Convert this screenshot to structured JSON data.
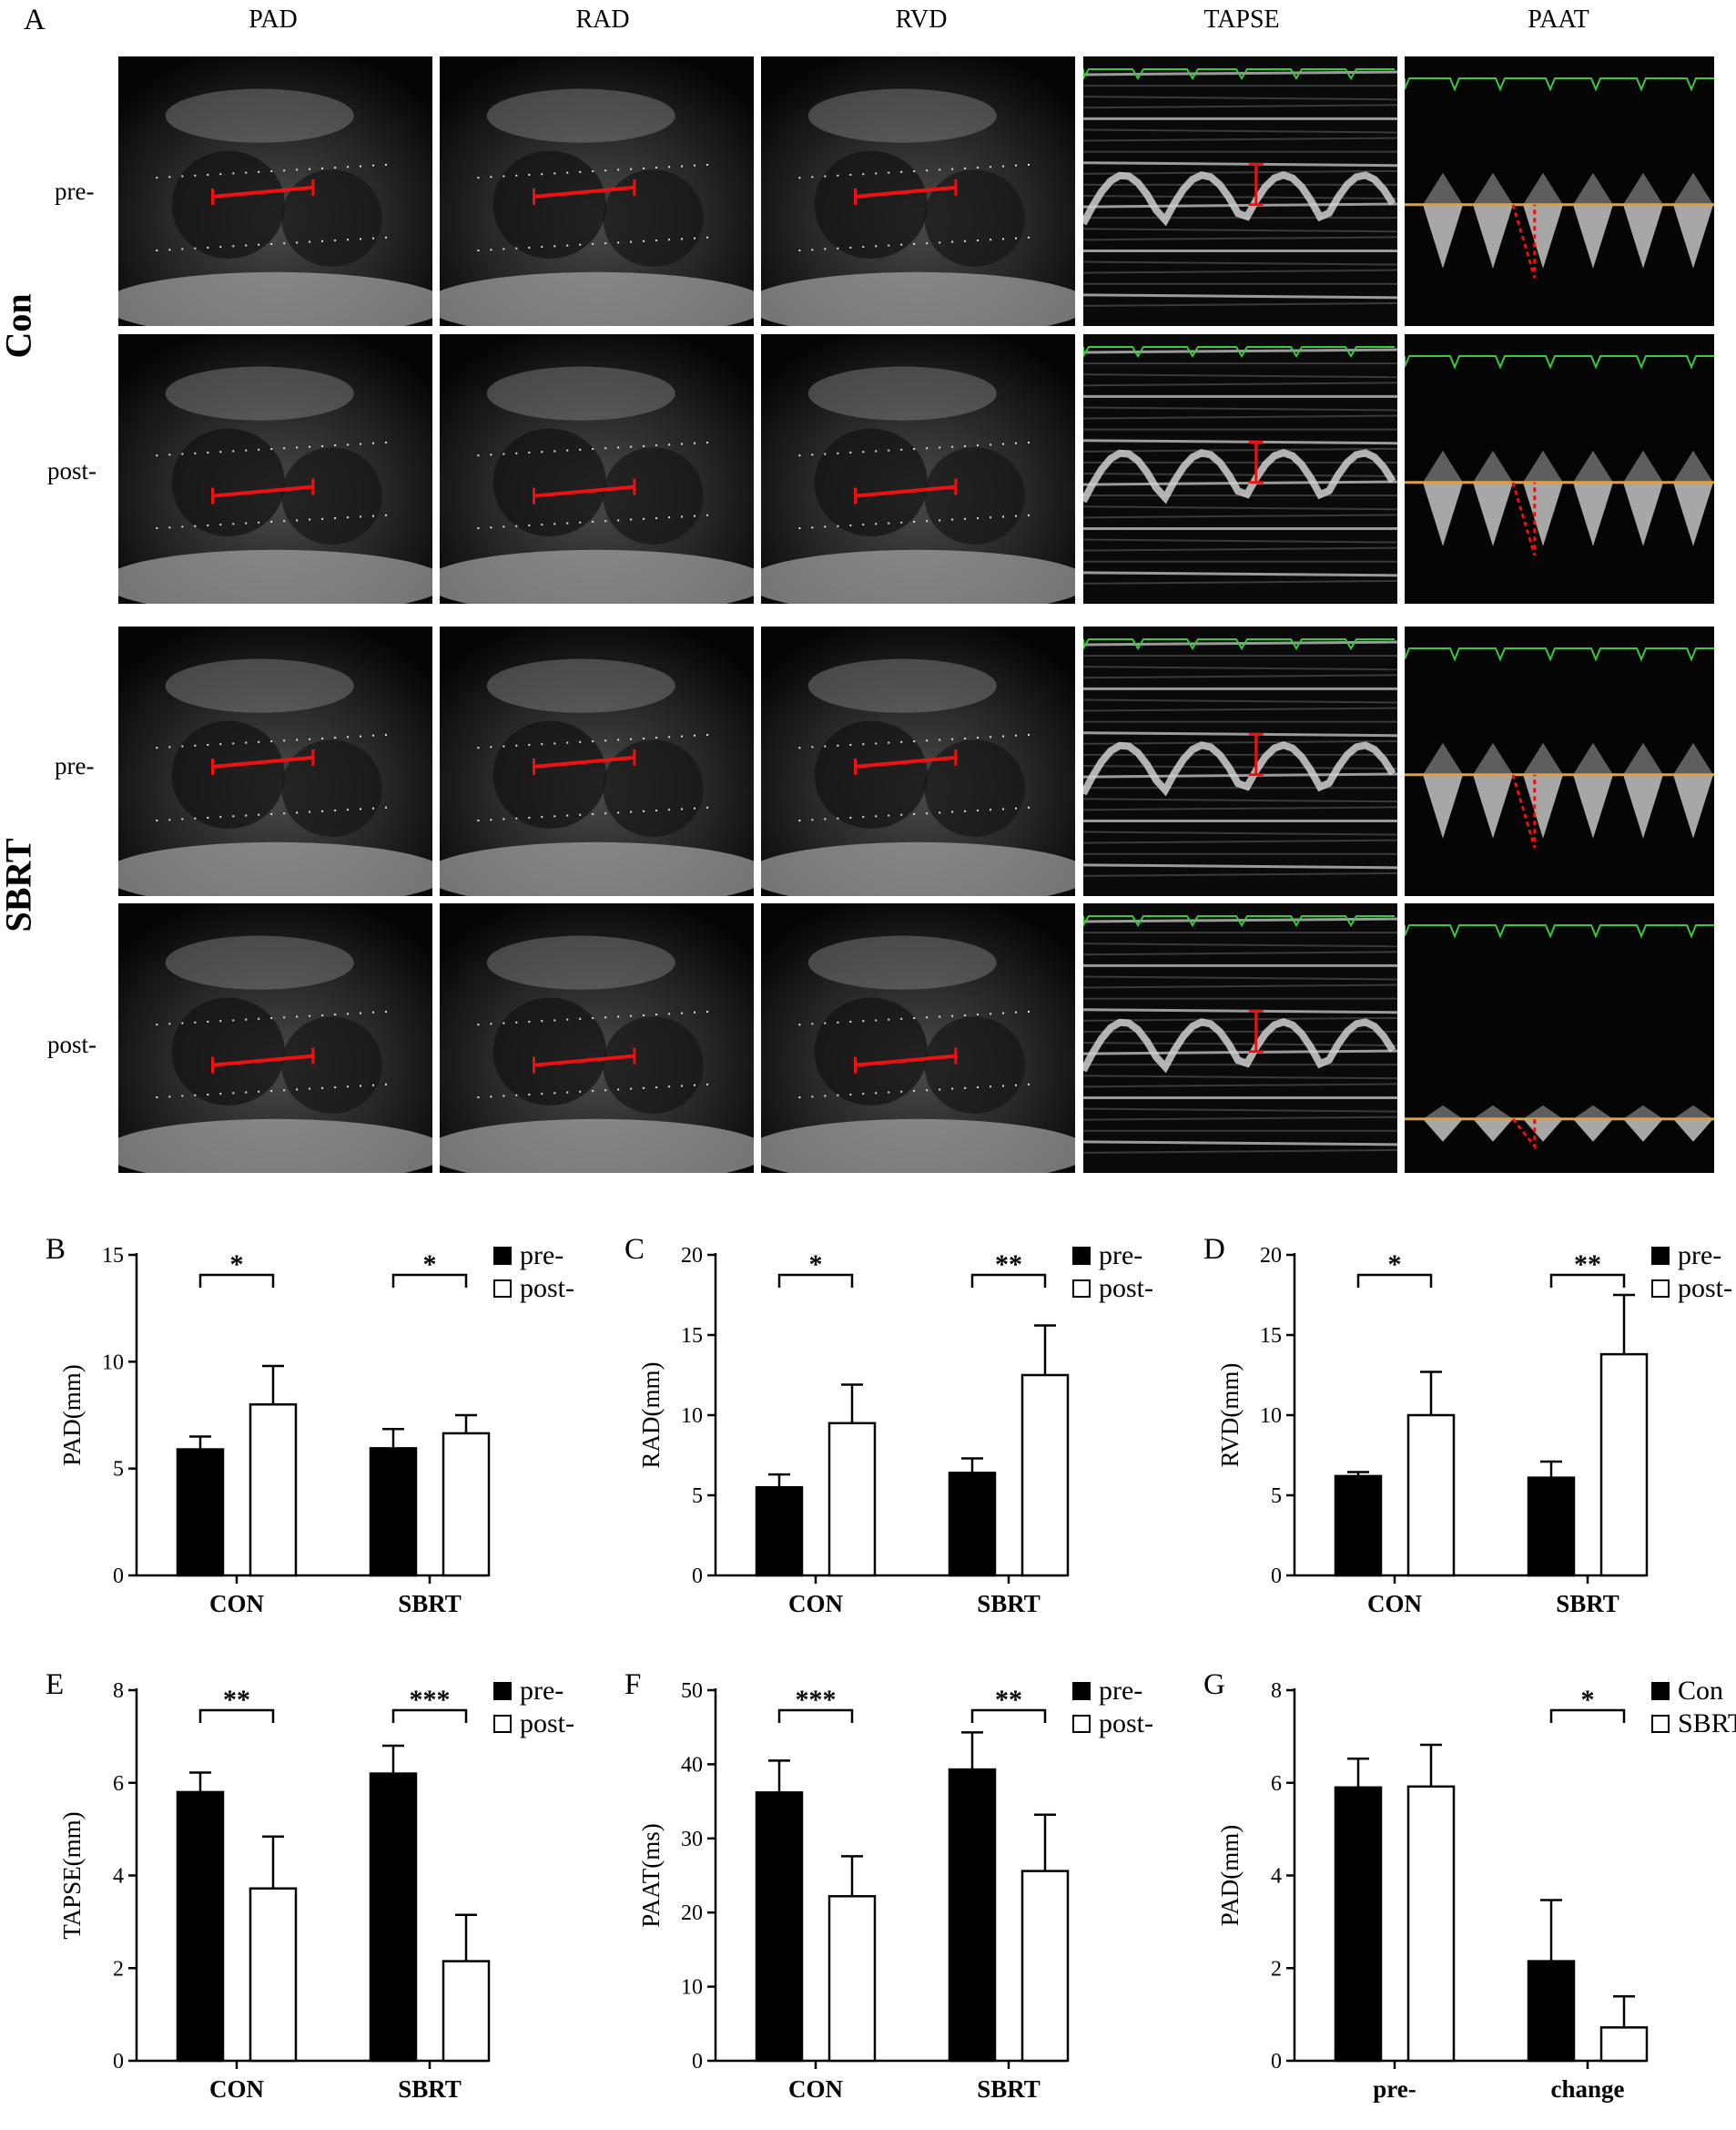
{
  "panel_a": {
    "label": "A",
    "columns": [
      "PAD",
      "RAD",
      "RVD",
      "TAPSE",
      "PAAT"
    ],
    "groups": [
      "Con",
      "SBRT"
    ],
    "rows": [
      "pre-",
      "post-",
      "pre-",
      "post-"
    ]
  },
  "chart_data": [
    {
      "panel": "B",
      "type": "bar",
      "categories": [
        "CON",
        "SBRT"
      ],
      "series": [
        {
          "name": "pre-",
          "values": [
            5.9,
            5.95
          ],
          "errors": [
            0.6,
            0.9
          ]
        },
        {
          "name": "post-",
          "values": [
            8.0,
            6.65
          ],
          "errors": [
            1.8,
            0.85
          ]
        }
      ],
      "ylabel": "PAD(mm)",
      "ylim": [
        0,
        15
      ],
      "yticks": [
        0,
        5,
        10,
        15
      ],
      "significance": [
        "*",
        "*"
      ],
      "legend": "top-right"
    },
    {
      "panel": "C",
      "type": "bar",
      "categories": [
        "CON",
        "SBRT"
      ],
      "series": [
        {
          "name": "pre-",
          "values": [
            5.5,
            6.4
          ],
          "errors": [
            0.8,
            0.9
          ]
        },
        {
          "name": "post-",
          "values": [
            9.5,
            12.5
          ],
          "errors": [
            2.4,
            3.1
          ]
        }
      ],
      "ylabel": "RAD(mm)",
      "ylim": [
        0,
        20
      ],
      "yticks": [
        0,
        5,
        10,
        15,
        20
      ],
      "significance": [
        "*",
        "**"
      ],
      "legend": "top-right"
    },
    {
      "panel": "D",
      "type": "bar",
      "categories": [
        "CON",
        "SBRT"
      ],
      "series": [
        {
          "name": "pre-",
          "values": [
            6.2,
            6.1
          ],
          "errors": [
            0.25,
            1.0
          ]
        },
        {
          "name": "post-",
          "values": [
            10.0,
            13.8
          ],
          "errors": [
            2.7,
            3.7
          ]
        }
      ],
      "ylabel": "RVD(mm)",
      "ylim": [
        0,
        20
      ],
      "yticks": [
        0,
        5,
        10,
        15,
        20
      ],
      "significance": [
        "*",
        "**"
      ],
      "legend": "top-right"
    },
    {
      "panel": "E",
      "type": "bar",
      "categories": [
        "CON",
        "SBRT"
      ],
      "series": [
        {
          "name": "pre-",
          "values": [
            5.8,
            6.2
          ],
          "errors": [
            0.42,
            0.6
          ]
        },
        {
          "name": "post-",
          "values": [
            3.72,
            2.15
          ],
          "errors": [
            1.12,
            1.0
          ]
        }
      ],
      "ylabel": "TAPSE(mm)",
      "ylim": [
        0,
        8
      ],
      "yticks": [
        0,
        2,
        4,
        6,
        8
      ],
      "significance": [
        "**",
        "***"
      ],
      "legend": "top-right"
    },
    {
      "panel": "F",
      "type": "bar",
      "categories": [
        "CON",
        "SBRT"
      ],
      "series": [
        {
          "name": "pre-",
          "values": [
            36.2,
            39.3
          ],
          "errors": [
            4.3,
            5.0
          ]
        },
        {
          "name": "post-",
          "values": [
            22.2,
            25.6
          ],
          "errors": [
            5.4,
            7.6
          ]
        }
      ],
      "ylabel": "PAAT(ms)",
      "ylim": [
        0,
        50
      ],
      "yticks": [
        0,
        10,
        20,
        30,
        40,
        50
      ],
      "significance": [
        "***",
        "**"
      ],
      "legend": "top-right"
    },
    {
      "panel": "G",
      "type": "bar",
      "categories": [
        "pre-",
        "change"
      ],
      "series": [
        {
          "name": "Con",
          "values": [
            5.9,
            2.15
          ],
          "errors": [
            0.62,
            1.32
          ]
        },
        {
          "name": "SBRT",
          "values": [
            5.92,
            0.72
          ],
          "errors": [
            0.9,
            0.67
          ]
        }
      ],
      "ylabel": "PAD(mm)",
      "ylim": [
        0,
        8
      ],
      "yticks": [
        0,
        2,
        4,
        6,
        8
      ],
      "significance": [
        null,
        "*"
      ],
      "legend": "top-right"
    }
  ]
}
